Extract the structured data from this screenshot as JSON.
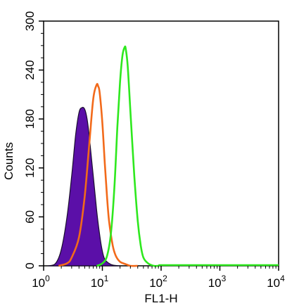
{
  "chart_data": {
    "type": "area",
    "title": "",
    "xlabel": "FL1-H",
    "ylabel": "Counts",
    "x_scale": "log",
    "xlim": [
      1,
      10000
    ],
    "ylim": [
      0,
      300
    ],
    "x_ticks": [
      {
        "value": 1,
        "base": "10",
        "exp": "0"
      },
      {
        "value": 10,
        "base": "10",
        "exp": "1"
      },
      {
        "value": 100,
        "base": "10",
        "exp": "2"
      },
      {
        "value": 1000,
        "base": "10",
        "exp": "3"
      },
      {
        "value": 10000,
        "base": "10",
        "exp": "4"
      }
    ],
    "y_ticks": [
      "0",
      "60",
      "120",
      "180",
      "240",
      "300"
    ],
    "grid": false,
    "series": [
      {
        "color": "#5b0fa8",
        "filled": true,
        "x": [
          1.2,
          1.6,
          2.0,
          2.5,
          3.0,
          3.5,
          4.0,
          4.5,
          5.0,
          5.5,
          6.0,
          7.0,
          8.0,
          9.0,
          10.0,
          11.0,
          13.0,
          15.0,
          20.0
        ],
        "values": [
          0,
          3,
          20,
          60,
          110,
          160,
          188,
          194,
          192,
          180,
          158,
          110,
          68,
          38,
          18,
          8,
          3,
          1,
          0
        ]
      },
      {
        "color": "#f26a1b",
        "filled": false,
        "x": [
          1.8,
          2.5,
          3.0,
          4.0,
          5.0,
          6.0,
          7.0,
          8.0,
          8.5,
          9.0,
          10.0,
          11.0,
          12.0,
          13.0,
          15.0,
          17.0,
          20.0,
          25.0,
          30.0,
          40.0
        ],
        "values": [
          0,
          3,
          10,
          35,
          85,
          150,
          205,
          222,
          220,
          212,
          175,
          125,
          85,
          55,
          25,
          12,
          5,
          2,
          0,
          0
        ]
      },
      {
        "color": "#2ee81e",
        "filled": false,
        "x": [
          8.0,
          10.0,
          12.0,
          14.0,
          16.0,
          18.0,
          20.0,
          22.0,
          24.0,
          25.0,
          27.0,
          30.0,
          35.0,
          40.0,
          45.0,
          50.0,
          60.0,
          75.0,
          90.0
        ],
        "values": [
          0,
          3,
          12,
          40,
          95,
          170,
          225,
          258,
          268,
          266,
          245,
          190,
          110,
          55,
          25,
          10,
          3,
          0,
          0
        ]
      }
    ]
  }
}
